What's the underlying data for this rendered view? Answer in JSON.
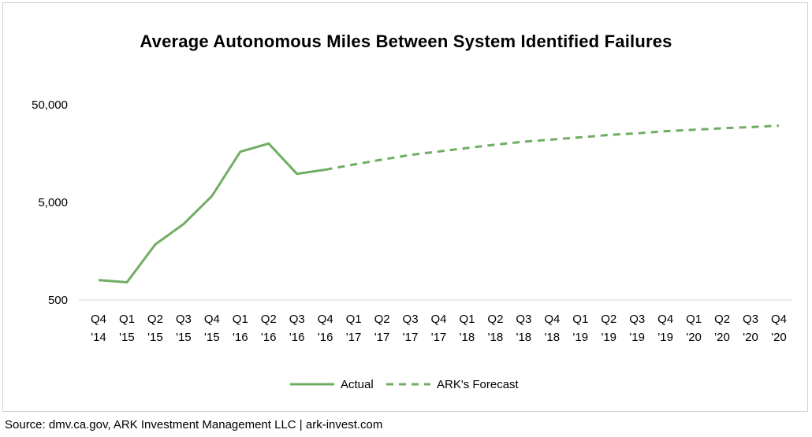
{
  "chart_data": {
    "type": "line",
    "title": "Average Autonomous Miles Between System Identified Failures",
    "xlabel": "",
    "ylabel": "",
    "y_scale": "log",
    "ylim": [
      500,
      50000
    ],
    "yticks": [
      "50,000",
      "5,000",
      "500"
    ],
    "ytick_values": [
      50000,
      5000,
      500
    ],
    "grid": false,
    "legend_position": "bottom",
    "categories": [
      [
        "Q4",
        "'14"
      ],
      [
        "Q1",
        "'15"
      ],
      [
        "Q2",
        "'15"
      ],
      [
        "Q3",
        "'15"
      ],
      [
        "Q4",
        "'15"
      ],
      [
        "Q1",
        "'16"
      ],
      [
        "Q2",
        "'16"
      ],
      [
        "Q3",
        "'16"
      ],
      [
        "Q4",
        "'16"
      ],
      [
        "Q1",
        "'17"
      ],
      [
        "Q2",
        "'17"
      ],
      [
        "Q3",
        "'17"
      ],
      [
        "Q4",
        "'17"
      ],
      [
        "Q1",
        "'18"
      ],
      [
        "Q2",
        "'18"
      ],
      [
        "Q3",
        "'18"
      ],
      [
        "Q4",
        "'18"
      ],
      [
        "Q1",
        "'19"
      ],
      [
        "Q2",
        "'19"
      ],
      [
        "Q3",
        "'19"
      ],
      [
        "Q4",
        "'19"
      ],
      [
        "Q1",
        "'20"
      ],
      [
        "Q2",
        "'20"
      ],
      [
        "Q3",
        "'20"
      ],
      [
        "Q4",
        "'20"
      ]
    ],
    "series": [
      {
        "name": "Actual",
        "style": "solid",
        "color": "#70ad63",
        "values": [
          800,
          760,
          1850,
          3000,
          5800,
          16500,
          20000,
          9800,
          10800,
          null,
          null,
          null,
          null,
          null,
          null,
          null,
          null,
          null,
          null,
          null,
          null,
          null,
          null,
          null,
          null
        ]
      },
      {
        "name": "ARK's Forecast",
        "style": "dashed",
        "color": "#70ad63",
        "values": [
          null,
          null,
          null,
          null,
          null,
          null,
          null,
          null,
          10800,
          12200,
          13700,
          15300,
          16600,
          18000,
          19500,
          20900,
          22000,
          23200,
          24500,
          25500,
          26800,
          27700,
          28700,
          29500,
          30500
        ]
      }
    ]
  },
  "source": "Source: dmv.ca.gov, ARK Investment Management LLC | ark-invest.com"
}
